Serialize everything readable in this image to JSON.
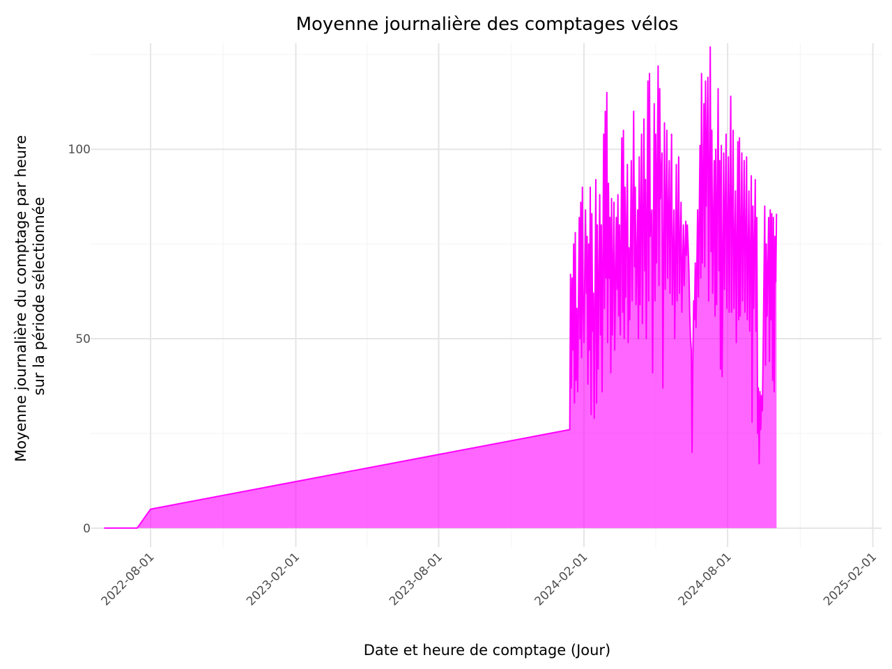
{
  "chart_data": {
    "type": "area",
    "title": "Moyenne journalière des comptages vélos",
    "xlabel": "Date et heure de comptage (Jour)",
    "ylabel_lines": [
      "Moyenne journalière du comptage par heure",
      "sur la période sélectionnée"
    ],
    "x_type": "date",
    "xlim": [
      "2022-05-17",
      "2025-02-12"
    ],
    "ylim": [
      -5,
      128
    ],
    "x_ticks": [
      "2022-08-01",
      "2023-02-01",
      "2023-08-01",
      "2024-02-01",
      "2024-08-01",
      "2025-02-01"
    ],
    "y_ticks": [
      0,
      50,
      100
    ],
    "grid": true,
    "legend": "none",
    "series": [
      {
        "color": "#ff00ff",
        "fill_opacity": 0.6,
        "points": [
          [
            "2022-06-03",
            0
          ],
          [
            "2022-07-15",
            0
          ],
          [
            "2022-08-01",
            5
          ],
          [
            "2024-01-14",
            26
          ],
          [
            "2024-01-15",
            67
          ],
          [
            "2024-01-16",
            37
          ],
          [
            "2024-01-17",
            66
          ],
          [
            "2024-01-18",
            47
          ],
          [
            "2024-01-19",
            75
          ],
          [
            "2024-01-20",
            33
          ],
          [
            "2024-01-21",
            78
          ],
          [
            "2024-01-22",
            39
          ],
          [
            "2024-01-23",
            58
          ],
          [
            "2024-01-24",
            36
          ],
          [
            "2024-01-26",
            82
          ],
          [
            "2024-01-27",
            50
          ],
          [
            "2024-01-28",
            86
          ],
          [
            "2024-01-29",
            45
          ],
          [
            "2024-01-30",
            90
          ],
          [
            "2024-01-31",
            60
          ],
          [
            "2024-02-01",
            49
          ],
          [
            "2024-02-03",
            84
          ],
          [
            "2024-02-04",
            62
          ],
          [
            "2024-02-05",
            77
          ],
          [
            "2024-02-06",
            38
          ],
          [
            "2024-02-07",
            75
          ],
          [
            "2024-02-08",
            47
          ],
          [
            "2024-02-09",
            90
          ],
          [
            "2024-02-10",
            30
          ],
          [
            "2024-02-11",
            83
          ],
          [
            "2024-02-12",
            52
          ],
          [
            "2024-02-13",
            62
          ],
          [
            "2024-02-14",
            29
          ],
          [
            "2024-02-16",
            92
          ],
          [
            "2024-02-17",
            33
          ],
          [
            "2024-02-18",
            80
          ],
          [
            "2024-02-19",
            42
          ],
          [
            "2024-02-21",
            88
          ],
          [
            "2024-02-22",
            51
          ],
          [
            "2024-02-23",
            80
          ],
          [
            "2024-02-24",
            36
          ],
          [
            "2024-02-26",
            104
          ],
          [
            "2024-02-27",
            58
          ],
          [
            "2024-02-28",
            110
          ],
          [
            "2024-02-29",
            66
          ],
          [
            "2024-03-01",
            115
          ],
          [
            "2024-03-02",
            49
          ],
          [
            "2024-03-03",
            91
          ],
          [
            "2024-03-04",
            66
          ],
          [
            "2024-03-05",
            82
          ],
          [
            "2024-03-06",
            41
          ],
          [
            "2024-03-07",
            87
          ],
          [
            "2024-03-08",
            51
          ],
          [
            "2024-03-10",
            86
          ],
          [
            "2024-03-11",
            47
          ],
          [
            "2024-03-13",
            82
          ],
          [
            "2024-03-14",
            63
          ],
          [
            "2024-03-15",
            88
          ],
          [
            "2024-03-16",
            56
          ],
          [
            "2024-03-17",
            80
          ],
          [
            "2024-03-18",
            51
          ],
          [
            "2024-03-20",
            103
          ],
          [
            "2024-03-21",
            57
          ],
          [
            "2024-03-22",
            105
          ],
          [
            "2024-03-23",
            50
          ],
          [
            "2024-03-24",
            90
          ],
          [
            "2024-03-25",
            61
          ],
          [
            "2024-03-27",
            96
          ],
          [
            "2024-03-28",
            49
          ],
          [
            "2024-03-29",
            74
          ],
          [
            "2024-03-30",
            55
          ],
          [
            "2024-04-01",
            97
          ],
          [
            "2024-04-02",
            60
          ],
          [
            "2024-04-04",
            110
          ],
          [
            "2024-04-05",
            69
          ],
          [
            "2024-04-06",
            90
          ],
          [
            "2024-04-07",
            59
          ],
          [
            "2024-04-09",
            84
          ],
          [
            "2024-04-10",
            50
          ],
          [
            "2024-04-11",
            98
          ],
          [
            "2024-04-12",
            59
          ],
          [
            "2024-04-14",
            104
          ],
          [
            "2024-04-15",
            54
          ],
          [
            "2024-04-17",
            108
          ],
          [
            "2024-04-18",
            68
          ],
          [
            "2024-04-19",
            92
          ],
          [
            "2024-04-20",
            50
          ],
          [
            "2024-04-22",
            118
          ],
          [
            "2024-04-23",
            60
          ],
          [
            "2024-04-24",
            120
          ],
          [
            "2024-04-25",
            77
          ],
          [
            "2024-04-27",
            84
          ],
          [
            "2024-04-28",
            41
          ],
          [
            "2024-04-30",
            112
          ],
          [
            "2024-05-01",
            60
          ],
          [
            "2024-05-02",
            104
          ],
          [
            "2024-05-03",
            70
          ],
          [
            "2024-05-05",
            122
          ],
          [
            "2024-05-06",
            64
          ],
          [
            "2024-05-07",
            116
          ],
          [
            "2024-05-08",
            87
          ],
          [
            "2024-05-10",
            99
          ],
          [
            "2024-05-11",
            37
          ],
          [
            "2024-05-13",
            107
          ],
          [
            "2024-05-14",
            63
          ],
          [
            "2024-05-16",
            105
          ],
          [
            "2024-05-17",
            66
          ],
          [
            "2024-05-19",
            97
          ],
          [
            "2024-05-20",
            62
          ],
          [
            "2024-05-22",
            104
          ],
          [
            "2024-05-23",
            59
          ],
          [
            "2024-05-25",
            84
          ],
          [
            "2024-05-26",
            50
          ],
          [
            "2024-05-28",
            96
          ],
          [
            "2024-05-29",
            60
          ],
          [
            "2024-05-31",
            98
          ],
          [
            "2024-06-01",
            62
          ],
          [
            "2024-06-03",
            86
          ],
          [
            "2024-06-04",
            57
          ],
          [
            "2024-06-06",
            80
          ],
          [
            "2024-06-07",
            64
          ],
          [
            "2024-06-09",
            81
          ],
          [
            "2024-06-10",
            72
          ],
          [
            "2024-06-11",
            80
          ],
          [
            "2024-06-12",
            74
          ],
          [
            "2024-06-13",
            68
          ],
          [
            "2024-06-14",
            57
          ],
          [
            "2024-06-15",
            50
          ],
          [
            "2024-06-16",
            47
          ],
          [
            "2024-06-17",
            20
          ],
          [
            "2024-06-18",
            46
          ],
          [
            "2024-06-19",
            60
          ],
          [
            "2024-06-20",
            55
          ],
          [
            "2024-06-21",
            70
          ],
          [
            "2024-06-22",
            53
          ],
          [
            "2024-06-24",
            84
          ],
          [
            "2024-06-25",
            61
          ],
          [
            "2024-06-27",
            101
          ],
          [
            "2024-06-28",
            66
          ],
          [
            "2024-06-29",
            120
          ],
          [
            "2024-06-30",
            70
          ],
          [
            "2024-07-02",
            112
          ],
          [
            "2024-07-03",
            69
          ],
          [
            "2024-07-04",
            118
          ],
          [
            "2024-07-05",
            85
          ],
          [
            "2024-07-07",
            119
          ],
          [
            "2024-07-08",
            60
          ],
          [
            "2024-07-10",
            127
          ],
          [
            "2024-07-11",
            73
          ],
          [
            "2024-07-12",
            105
          ],
          [
            "2024-07-13",
            62
          ],
          [
            "2024-07-15",
            97
          ],
          [
            "2024-07-16",
            56
          ],
          [
            "2024-07-17",
            100
          ],
          [
            "2024-07-18",
            59
          ],
          [
            "2024-07-20",
            116
          ],
          [
            "2024-07-21",
            68
          ],
          [
            "2024-07-22",
            97
          ],
          [
            "2024-07-23",
            42
          ],
          [
            "2024-07-24",
            101
          ],
          [
            "2024-07-25",
            40
          ],
          [
            "2024-07-27",
            99
          ],
          [
            "2024-07-28",
            63
          ],
          [
            "2024-07-30",
            104
          ],
          [
            "2024-07-31",
            58
          ],
          [
            "2024-08-02",
            98
          ],
          [
            "2024-08-03",
            57
          ],
          [
            "2024-08-05",
            114
          ],
          [
            "2024-08-06",
            57
          ],
          [
            "2024-08-08",
            105
          ],
          [
            "2024-08-09",
            58
          ],
          [
            "2024-08-11",
            89
          ],
          [
            "2024-08-12",
            49
          ],
          [
            "2024-08-14",
            102
          ],
          [
            "2024-08-15",
            55
          ],
          [
            "2024-08-16",
            103
          ],
          [
            "2024-08-17",
            56
          ],
          [
            "2024-08-19",
            99
          ],
          [
            "2024-08-20",
            60
          ],
          [
            "2024-08-22",
            97
          ],
          [
            "2024-08-23",
            57
          ],
          [
            "2024-08-25",
            98
          ],
          [
            "2024-08-26",
            55
          ],
          [
            "2024-08-28",
            89
          ],
          [
            "2024-08-29",
            52
          ],
          [
            "2024-08-31",
            93
          ],
          [
            "2024-09-01",
            28
          ],
          [
            "2024-09-02",
            85
          ],
          [
            "2024-09-03",
            58
          ],
          [
            "2024-09-05",
            92
          ],
          [
            "2024-09-06",
            52
          ],
          [
            "2024-09-07",
            82
          ],
          [
            "2024-09-08",
            25
          ],
          [
            "2024-09-09",
            37
          ],
          [
            "2024-09-10",
            17
          ],
          [
            "2024-09-11",
            36
          ],
          [
            "2024-09-12",
            26
          ],
          [
            "2024-09-13",
            35
          ],
          [
            "2024-09-14",
            31
          ],
          [
            "2024-09-15",
            47
          ],
          [
            "2024-09-17",
            85
          ],
          [
            "2024-09-18",
            43
          ],
          [
            "2024-09-19",
            75
          ],
          [
            "2024-09-20",
            56
          ],
          [
            "2024-09-22",
            82
          ],
          [
            "2024-09-23",
            44
          ],
          [
            "2024-09-24",
            84
          ],
          [
            "2024-09-25",
            55
          ],
          [
            "2024-09-26",
            83
          ],
          [
            "2024-09-27",
            39
          ],
          [
            "2024-09-28",
            82
          ],
          [
            "2024-09-29",
            36
          ],
          [
            "2024-09-30",
            77
          ],
          [
            "2024-10-01",
            65
          ],
          [
            "2024-10-02",
            83
          ]
        ]
      }
    ]
  }
}
